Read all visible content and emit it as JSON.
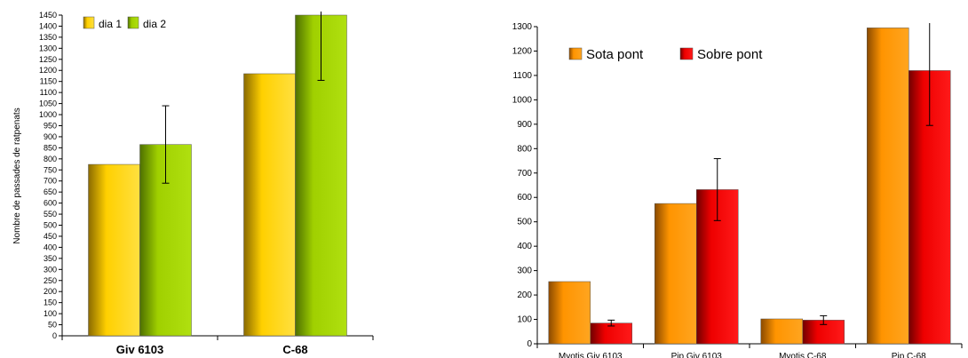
{
  "chart_data": [
    {
      "type": "bar",
      "title": "",
      "xlabel": "",
      "ylabel": "Nombre de passades de ratpenats",
      "ylim": [
        0,
        1450
      ],
      "ytick_step": 50,
      "grid": false,
      "legend_position": "top-left",
      "categories": [
        "Giv 6103",
        "C-68"
      ],
      "series": [
        {
          "name": "dia 1",
          "color": "#e0b800",
          "values": [
            775,
            1185
          ],
          "errors": [
            null,
            null
          ]
        },
        {
          "name": "dia 2",
          "color": "#8ab800",
          "values": [
            865,
            1450
          ],
          "errors": [
            175,
            295
          ]
        }
      ]
    },
    {
      "type": "bar",
      "title": "",
      "xlabel": "",
      "ylabel": "",
      "ylim": [
        0,
        1300
      ],
      "ytick_step": 100,
      "grid": false,
      "legend_position": "top-left",
      "categories": [
        "Myotis Giv 6103",
        "Pip Giv 6103",
        "Myotis C-68",
        "Pip C-68"
      ],
      "series": [
        {
          "name": "Sota pont",
          "color": "#f08c00",
          "values": [
            255,
            575,
            102,
            1295
          ],
          "errors": [
            null,
            null,
            null,
            null
          ]
        },
        {
          "name": "Sobre pont",
          "color": "#e00000",
          "values": [
            85,
            632,
            97,
            1120
          ],
          "errors": [
            12,
            127,
            18,
            225
          ]
        }
      ]
    }
  ]
}
